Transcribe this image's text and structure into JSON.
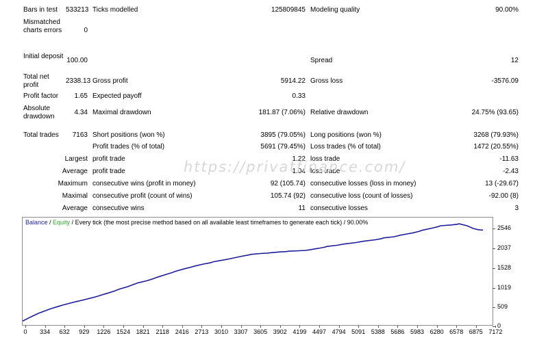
{
  "stats": [
    {
      "label": "Bars in test",
      "value": "533213",
      "label2": "Ticks modelled",
      "value2": "125809845",
      "label3": "Modeling quality",
      "value3": "90.00%"
    },
    {
      "label": "Mismatched charts errors",
      "value": "0"
    },
    {
      "label": "Initial deposit",
      "value": "100.00",
      "label3": "Spread",
      "value3": "12"
    },
    {
      "label": "Total net profit",
      "value": "2338.13",
      "label2": "Gross profit",
      "value2": "5914.22",
      "label3": "Gross loss",
      "value3": "-3576.09"
    },
    {
      "label": "Profit factor",
      "value": "1.65",
      "label2": "Expected payoff",
      "value2": "0.33"
    },
    {
      "label": "Absolute drawdown",
      "value": "4.34",
      "label2": "Maximal drawdown",
      "value2": "181.87 (7.06%)",
      "label3": "Relative drawdown",
      "value3": "24.75% (93.65)"
    },
    {
      "label": "Total trades",
      "value": "7163",
      "label2": "Short positions (won %)",
      "value2": "3895 (79.05%)",
      "label3": "Long positions (won %)",
      "value3": "3268 (79.93%)"
    },
    {
      "label2": "Profit trades (% of total)",
      "value2": "5691 (79.45%)",
      "label3": "Loss trades (% of total)",
      "value3": "1472 (20.55%)"
    },
    {
      "label": "Largest",
      "label2": "profit trade",
      "value2": "1.22",
      "label3": "loss trade",
      "value3": "-11.63"
    },
    {
      "label": "Average",
      "label2": "profit trade",
      "value2": "1.04",
      "label3": "loss trade",
      "value3": "-2.43"
    },
    {
      "label": "Maximum",
      "label2": "consecutive wins (profit in money)",
      "value2": "92 (105.74)",
      "label3": "consecutive losses (loss in money)",
      "value3": "13 (-29.67)"
    },
    {
      "label": "Maximal",
      "label2": "consecutive profit (count of wins)",
      "value2": "105.74 (92)",
      "label3": "consecutive loss (count of losses)",
      "value3": "-92.00 (8)"
    },
    {
      "label": "Average",
      "label2": "consecutive wins",
      "value2": "11",
      "label3": "consecutive losses",
      "value3": "3"
    }
  ],
  "watermark": "https://privatfinance.com/",
  "chart_data": {
    "type": "line",
    "legend": {
      "balance": "Balance",
      "sep": " / ",
      "equity": "Equity",
      "rest": " / Every tick (the most precise method based on all available least timeframes to generate each tick) / 90.00%"
    },
    "y_ticks": [
      "2546",
      "2037",
      "1528",
      "1019",
      "509",
      "0"
    ],
    "x_ticks": [
      "0",
      "334",
      "632",
      "929",
      "1226",
      "1524",
      "1821",
      "2118",
      "2416",
      "2713",
      "3010",
      "3307",
      "3605",
      "3902",
      "4199",
      "4497",
      "4794",
      "5091",
      "5388",
      "5686",
      "5983",
      "6280",
      "6578",
      "6875",
      "7172"
    ],
    "xlim": [
      0,
      7400
    ],
    "ylim": [
      0,
      2750
    ],
    "colors": {
      "balance": "#1c1c9c",
      "equity": "#2ea02e"
    },
    "series": [
      {
        "name": "Balance",
        "x": [
          0,
          120,
          250,
          334,
          450,
          550,
          632,
          750,
          850,
          929,
          1050,
          1150,
          1226,
          1350,
          1450,
          1524,
          1650,
          1750,
          1821,
          1950,
          2050,
          2118,
          2250,
          2350,
          2416,
          2550,
          2650,
          2713,
          2850,
          2950,
          3010,
          3150,
          3250,
          3307,
          3450,
          3550,
          3605,
          3750,
          3850,
          3902,
          4050,
          4150,
          4199,
          4350,
          4450,
          4497,
          4650,
          4750,
          4794,
          4950,
          5050,
          5091,
          5250,
          5350,
          5388,
          5550,
          5650,
          5686,
          5850,
          5950,
          5983,
          6150,
          6250,
          6280,
          6450,
          6550,
          6578,
          6750,
          6850,
          6875,
          7000,
          7100,
          7172,
          7250
        ],
        "y": [
          100,
          200,
          300,
          350,
          420,
          470,
          510,
          560,
          600,
          630,
          680,
          720,
          760,
          820,
          870,
          920,
          980,
          1040,
          1080,
          1130,
          1180,
          1220,
          1290,
          1340,
          1380,
          1440,
          1480,
          1510,
          1560,
          1590,
          1620,
          1660,
          1690,
          1710,
          1760,
          1790,
          1810,
          1830,
          1840,
          1850,
          1870,
          1880,
          1890,
          1900,
          1910,
          1920,
          1960,
          1990,
          2010,
          2040,
          2070,
          2080,
          2110,
          2140,
          2150,
          2180,
          2210,
          2230,
          2260,
          2300,
          2310,
          2360,
          2400,
          2420,
          2480,
          2520,
          2540,
          2560,
          2580,
          2590,
          2540,
          2470,
          2440,
          2430
        ]
      }
    ]
  }
}
